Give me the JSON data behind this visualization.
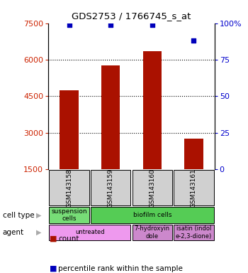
{
  "title": "GDS2753 / 1766745_s_at",
  "samples": [
    "GSM143158",
    "GSM143159",
    "GSM143160",
    "GSM143161"
  ],
  "counts": [
    4750,
    5750,
    6350,
    2750
  ],
  "percentile_ranks": [
    99,
    99,
    99,
    88
  ],
  "ylim_left": [
    1500,
    7500
  ],
  "ylim_right": [
    0,
    100
  ],
  "yticks_left": [
    1500,
    3000,
    4500,
    6000,
    7500
  ],
  "yticks_right": [
    0,
    25,
    50,
    75,
    100
  ],
  "bar_color": "#aa1100",
  "dot_color": "#0000bb",
  "bar_width": 0.45,
  "cell_type_label": "cell type",
  "agent_label": "agent",
  "legend_count_label": "count",
  "legend_pct_label": "percentile rank within the sample",
  "tick_color_left": "#cc2200",
  "tick_color_right": "#0000cc",
  "suspension_color": "#77dd77",
  "biofilm_color": "#55cc55",
  "untreated_color": "#ee99ee",
  "treated_color": "#cc88cc",
  "sample_box_color": "#d0d0d0"
}
